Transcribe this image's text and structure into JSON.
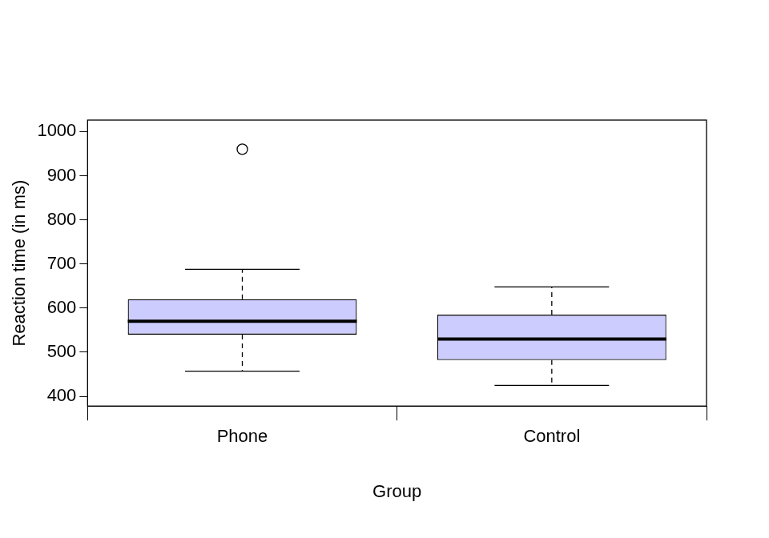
{
  "chart_data": {
    "type": "boxplot",
    "x_label": "Group",
    "y_label": "Reaction time (in ms)",
    "categories": [
      "Phone",
      "Control"
    ],
    "stats": [
      {
        "min": 457,
        "q1": 540,
        "median": 570,
        "q3": 620,
        "max": 688,
        "outliers": [
          960
        ]
      },
      {
        "min": 425,
        "q1": 482,
        "median": 530,
        "q3": 585,
        "max": 648,
        "outliers": []
      }
    ],
    "color": "#ccccff",
    "ylim": [
      378,
      1026
    ],
    "yticks": [
      400,
      500,
      600,
      700,
      800,
      900,
      1000
    ],
    "grid": false
  }
}
